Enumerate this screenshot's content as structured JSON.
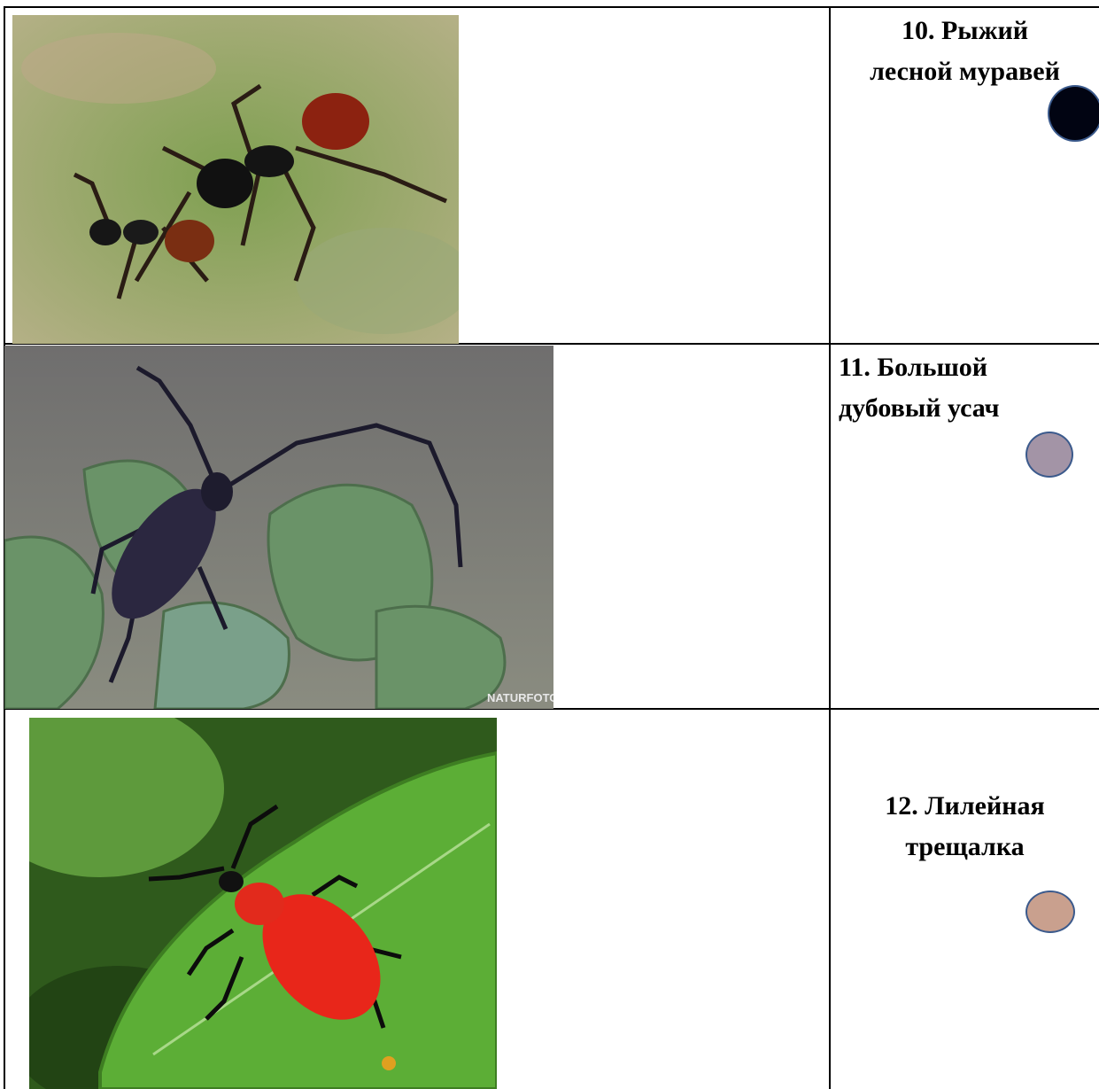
{
  "table": {
    "rows": [
      {
        "label_lines": [
          "10. Рыжий",
          "лесной муравей"
        ]
      },
      {
        "label_lines": [
          "11. Большой",
          "дубовый усач"
        ],
        "watermark": "NATURFOTO"
      },
      {
        "label_lines": [
          "12. Лилейная",
          "трещалка"
        ]
      }
    ]
  }
}
